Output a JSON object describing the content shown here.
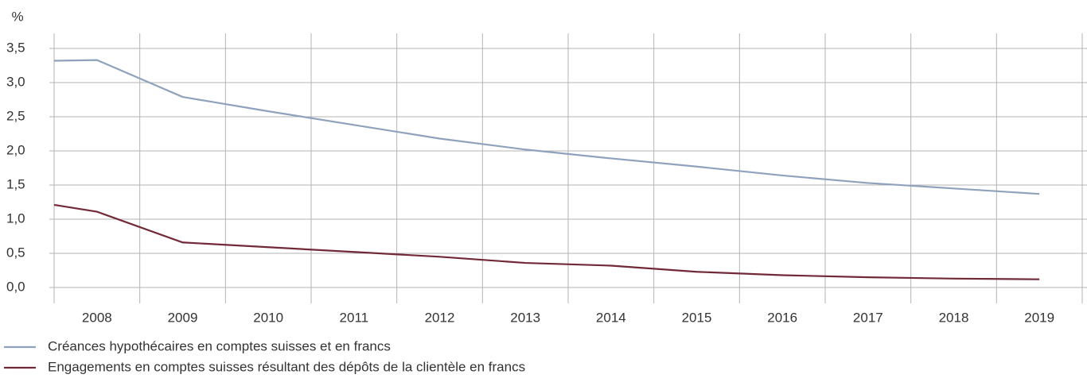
{
  "chart_data": {
    "type": "line",
    "y_label": "%",
    "x": [
      2007.5,
      2008,
      2009,
      2010,
      2011,
      2012,
      2013,
      2014,
      2015,
      2016,
      2017,
      2018,
      2019
    ],
    "xlim": [
      2007.5,
      2019.5
    ],
    "xticks": [
      2008,
      2009,
      2010,
      2011,
      2012,
      2013,
      2014,
      2015,
      2016,
      2017,
      2018,
      2019
    ],
    "ylim": [
      0,
      3.5
    ],
    "yticks": [
      {
        "value": 0,
        "label": "0,0"
      },
      {
        "value": 0.5,
        "label": "0,5"
      },
      {
        "value": 1,
        "label": "1,0"
      },
      {
        "value": 1.5,
        "label": "1,5"
      },
      {
        "value": 2,
        "label": "2,0"
      },
      {
        "value": 2.5,
        "label": "2,5"
      },
      {
        "value": 3,
        "label": "3,0"
      },
      {
        "value": 3.5,
        "label": "3,5"
      }
    ],
    "grid": true,
    "legend": "bottom-left",
    "series": [
      {
        "name": "Créances hypothécaires en comptes suisses et en francs",
        "color": "#8fa2bc",
        "values": [
          3.32,
          3.33,
          2.79,
          2.58,
          2.38,
          2.18,
          2.02,
          1.89,
          1.77,
          1.64,
          1.53,
          1.45,
          1.37
        ]
      },
      {
        "name": "Engagements en comptes suisses résultant des dépôts de la clientèle en francs",
        "color": "#722937",
        "values": [
          1.21,
          1.11,
          0.66,
          0.59,
          0.52,
          0.45,
          0.36,
          0.32,
          0.23,
          0.18,
          0.15,
          0.13,
          0.12
        ]
      }
    ]
  }
}
